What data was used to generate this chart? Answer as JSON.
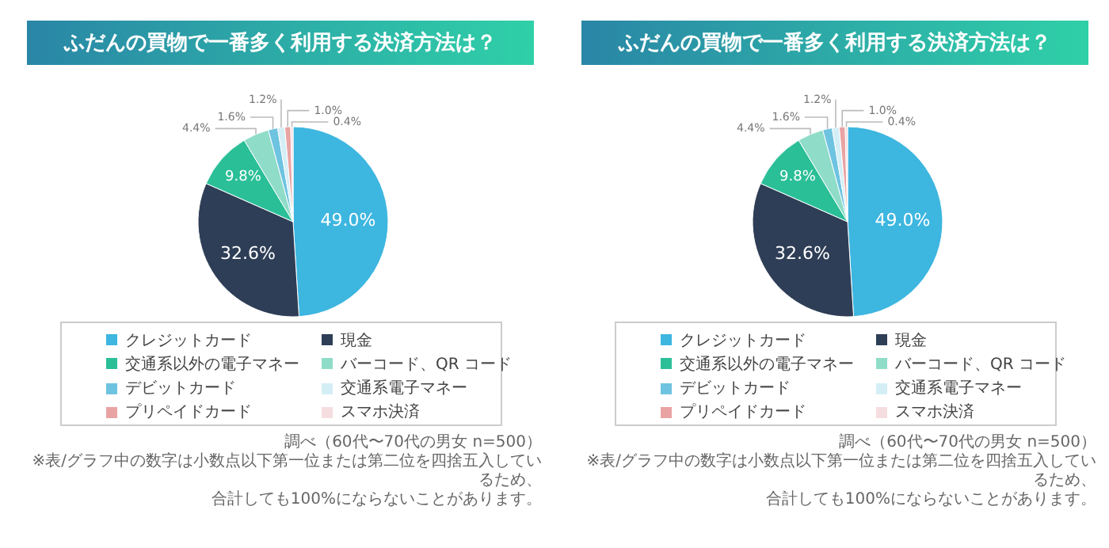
{
  "chart_data": [
    {
      "type": "pie",
      "title": "ふだんの買物で一番多く利用する決済方法は？",
      "categories": [
        "クレジットカード",
        "現金",
        "交通系以外の電子マネー",
        "バーコード、QR コード",
        "デビットカード",
        "交通系電子マネー",
        "プリペイドカード",
        "スマホ決済"
      ],
      "values": [
        49.0,
        32.6,
        9.8,
        4.4,
        1.6,
        1.2,
        1.0,
        0.4
      ],
      "value_labels": [
        "49.0%",
        "32.6%",
        "9.8%",
        "4.4%",
        "1.6%",
        "1.2%",
        "1.0%",
        "0.4%"
      ],
      "colors": [
        "#3db6e0",
        "#2e3e56",
        "#2bbf98",
        "#8fdcc8",
        "#6ec3e0",
        "#d4eef5",
        "#e9a3a3",
        "#f5dde0"
      ],
      "legend": "bottom",
      "annotations": [
        "調べ（60代〜70代の男女 n=500）",
        "※表/グラフ中の数字は小数点以下第一位または第二位を四捨五入しているため、",
        "合計しても100%にならないことがあります。"
      ]
    },
    {
      "type": "pie",
      "title": "ふだんの買物で一番多く利用する決済方法は？",
      "categories": [
        "クレジットカード",
        "現金",
        "交通系以外の電子マネー",
        "バーコード、QR コード",
        "デビットカード",
        "交通系電子マネー",
        "プリペイドカード",
        "スマホ決済"
      ],
      "values": [
        49.0,
        32.6,
        9.8,
        4.4,
        1.6,
        1.2,
        1.0,
        0.4
      ],
      "value_labels": [
        "49.0%",
        "32.6%",
        "9.8%",
        "4.4%",
        "1.6%",
        "1.2%",
        "1.0%",
        "0.4%"
      ],
      "colors": [
        "#3db6e0",
        "#2e3e56",
        "#2bbf98",
        "#8fdcc8",
        "#6ec3e0",
        "#d4eef5",
        "#e9a3a3",
        "#f5dde0"
      ],
      "legend": "bottom",
      "annotations": [
        "調べ（60代〜70代の男女 n=500）",
        "※表/グラフ中の数字は小数点以下第一位または第二位を四捨五入しているため、",
        "合計しても100%にならないことがあります。"
      ]
    }
  ]
}
